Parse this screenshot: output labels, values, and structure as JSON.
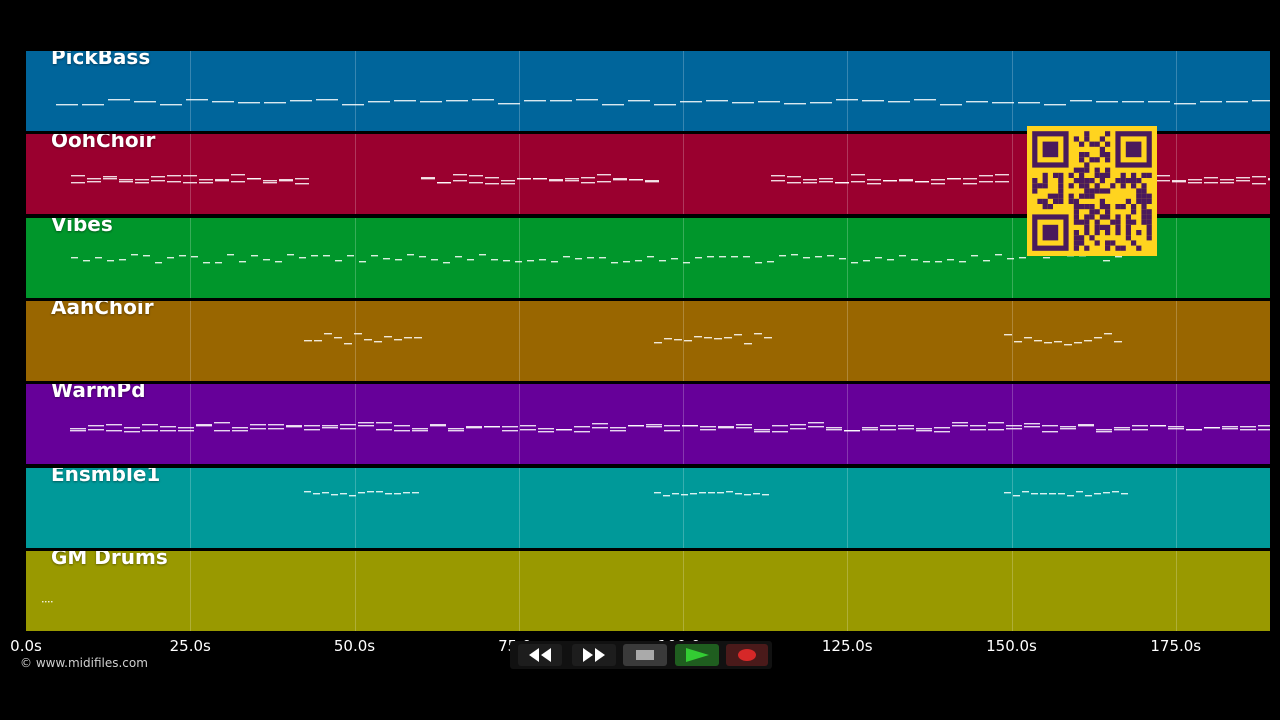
{
  "tracks": [
    {
      "name": "PickBass",
      "color": "#00659b"
    },
    {
      "name": "OohChoir",
      "color": "#9a002f"
    },
    {
      "name": "Vibes",
      "color": "#00962b"
    },
    {
      "name": "AahChoir",
      "color": "#996600"
    },
    {
      "name": "WarmPd",
      "color": "#660099"
    },
    {
      "name": "Ensmble1",
      "color": "#009999"
    },
    {
      "name": "GM Drums",
      "color": "#999900"
    }
  ],
  "axis": {
    "ticks": [
      "0.0s",
      "25.0s",
      "50.0s",
      "75.0s",
      "100.0s",
      "125.0s",
      "150.0s",
      "175.0s"
    ]
  },
  "credit": "© www.midifiles.com",
  "transport": {
    "buttons": [
      {
        "name": "rewind",
        "icon": "rewind-icon"
      },
      {
        "name": "fast-forward",
        "icon": "fast-forward-icon"
      },
      {
        "name": "stop",
        "icon": "stop-icon"
      },
      {
        "name": "play",
        "icon": "play-icon"
      },
      {
        "name": "record",
        "icon": "record-icon"
      }
    ]
  },
  "qr_code": {
    "icon": "qr-code-icon",
    "color": "#ffd41f"
  }
}
